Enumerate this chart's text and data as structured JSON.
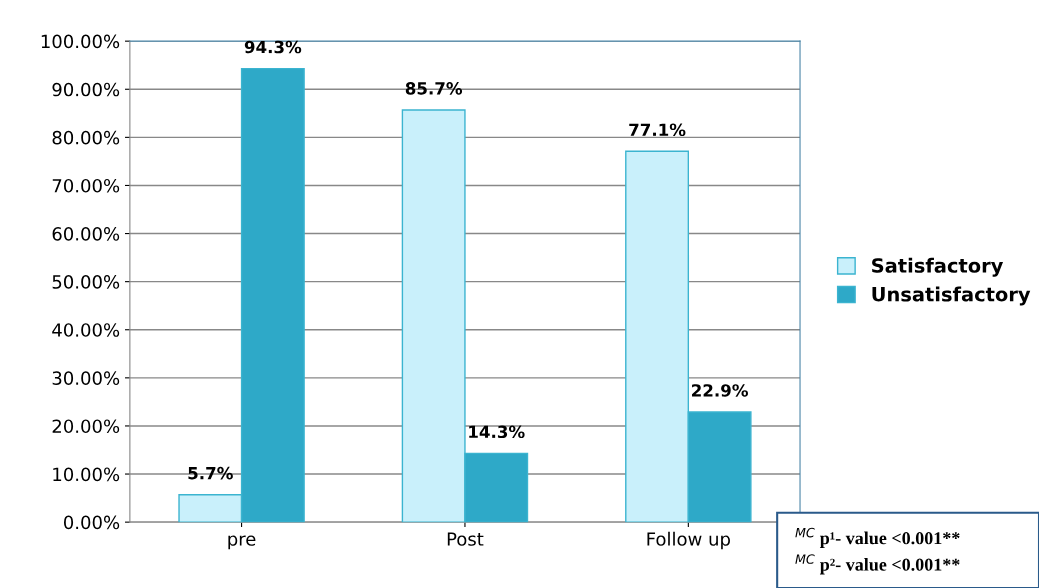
{
  "chart_data": {
    "type": "bar",
    "categories": [
      "pre",
      "Post",
      "Follow up"
    ],
    "series": [
      {
        "name": "Satisfactory",
        "color": "#c9f0fb",
        "values": [
          5.7,
          85.7,
          77.1
        ],
        "value_labels": [
          "5.7%",
          "85.7%",
          "77.1%"
        ]
      },
      {
        "name": "Unsatisfactory",
        "color": "#2ea9c8",
        "values": [
          94.3,
          14.3,
          22.9
        ],
        "value_labels": [
          "94.3%",
          "14.3%",
          "22.9%"
        ]
      }
    ],
    "ylim": [
      0,
      100
    ],
    "yticks": [
      {
        "value": 0,
        "label": "0.00%"
      },
      {
        "value": 10,
        "label": "10.00%"
      },
      {
        "value": 20,
        "label": "20.00%"
      },
      {
        "value": 30,
        "label": "30.00%"
      },
      {
        "value": 40,
        "label": "40.00%"
      },
      {
        "value": 50,
        "label": "50.00%"
      },
      {
        "value": 60,
        "label": "60.00%"
      },
      {
        "value": 70,
        "label": "70.00%"
      },
      {
        "value": 80,
        "label": "80.00%"
      },
      {
        "value": 90,
        "label": "90.00%"
      },
      {
        "value": 100,
        "label": "100.00%"
      }
    ],
    "grid": "y",
    "legend": "right",
    "annotations": [
      "$^{MC}$ p¹- value <0.001**",
      "$^{MC}$ p²- value <0.001**"
    ]
  }
}
